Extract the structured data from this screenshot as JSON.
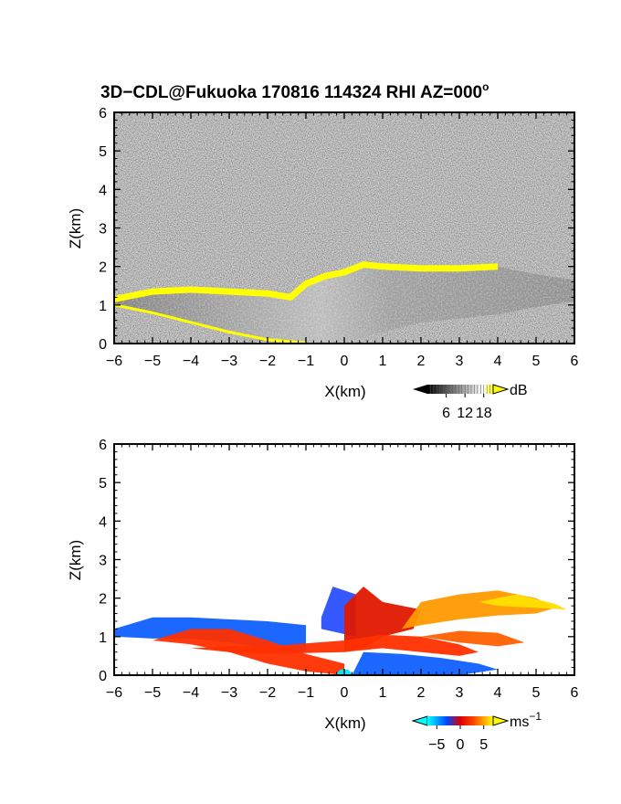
{
  "title": {
    "main": "3D−CDL@Fukuoka 170816 114324 RHI AZ=000",
    "deg": "o"
  },
  "chart_data": [
    {
      "type": "heatmap",
      "panel": "reflectivity",
      "xlabel": "X(km)",
      "ylabel": "Z(km)",
      "xlim": [
        -6,
        6
      ],
      "ylim": [
        0,
        6
      ],
      "xticks": [
        "−6",
        "−5",
        "−4",
        "−3",
        "−2",
        "−1",
        "0",
        "1",
        "2",
        "3",
        "4",
        "5",
        "6"
      ],
      "yticks": [
        "0",
        "1",
        "2",
        "3",
        "4",
        "5",
        "6"
      ],
      "colorbar": {
        "unit": "dB",
        "ticks": [
          "6",
          "12",
          "18"
        ],
        "range": [
          0,
          21
        ],
        "colors": [
          "#000000",
          "#ffffff",
          "#ffff00"
        ]
      },
      "layer": {
        "top": [
          [
            -6,
            1.15
          ],
          [
            -5,
            1.35
          ],
          [
            -4,
            1.4
          ],
          [
            -3,
            1.35
          ],
          [
            -2,
            1.3
          ],
          [
            -1.4,
            1.2
          ],
          [
            -1,
            1.55
          ],
          [
            -0.5,
            1.75
          ],
          [
            0,
            1.85
          ],
          [
            0.5,
            2.05
          ],
          [
            1,
            2.0
          ],
          [
            2,
            1.95
          ],
          [
            3,
            1.95
          ],
          [
            4,
            2.0
          ],
          [
            5,
            1.8
          ],
          [
            6,
            1.65
          ]
        ],
        "bottom": [
          [
            -6,
            1.0
          ],
          [
            -5,
            0.8
          ],
          [
            -4,
            0.55
          ],
          [
            -3,
            0.3
          ],
          [
            -2,
            0.1
          ],
          [
            -1,
            0.02
          ],
          [
            0,
            0.05
          ],
          [
            1,
            0.3
          ],
          [
            2,
            0.55
          ],
          [
            3,
            0.65
          ],
          [
            4,
            0.75
          ],
          [
            5,
            0.95
          ],
          [
            6,
            1.1
          ]
        ],
        "echo_top_dB": 18,
        "echo_top": [
          [
            -6,
            1.15
          ],
          [
            -5,
            1.35
          ],
          [
            -4,
            1.4
          ],
          [
            -3,
            1.35
          ],
          [
            -2,
            1.3
          ],
          [
            -1.4,
            1.2
          ],
          [
            -1,
            1.55
          ],
          [
            -0.5,
            1.75
          ],
          [
            0,
            1.85
          ],
          [
            0.5,
            2.05
          ],
          [
            1,
            2.0
          ],
          [
            2,
            1.95
          ],
          [
            3,
            1.95
          ],
          [
            4,
            2.0
          ]
        ]
      }
    },
    {
      "type": "heatmap",
      "panel": "doppler velocity",
      "xlabel": "X(km)",
      "ylabel": "Z(km)",
      "xlim": [
        -6,
        6
      ],
      "ylim": [
        0,
        6
      ],
      "xticks": [
        "−6",
        "−5",
        "−4",
        "−3",
        "−2",
        "−1",
        "0",
        "1",
        "2",
        "3",
        "4",
        "5",
        "6"
      ],
      "yticks": [
        "0",
        "1",
        "2",
        "3",
        "4",
        "5",
        "6"
      ],
      "colorbar": {
        "unit": "ms",
        "unit_exp": "−1",
        "ticks": [
          "−5",
          "0",
          "5"
        ],
        "range": [
          -7,
          7
        ],
        "colors": [
          "#00ffff",
          "#0044ff",
          "#ff2200",
          "#ffff00"
        ]
      },
      "regions": [
        {
          "v": -4,
          "outline": [
            [
              -6,
              1.0
            ],
            [
              -6,
              1.2
            ],
            [
              -5,
              1.5
            ],
            [
              -4,
              1.5
            ],
            [
              -3,
              1.45
            ],
            [
              -2,
              1.4
            ],
            [
              -1,
              1.3
            ],
            [
              -1,
              0.6
            ],
            [
              -2,
              0.7
            ],
            [
              -3,
              0.85
            ],
            [
              -4,
              0.95
            ],
            [
              -5,
              0.95
            ]
          ]
        },
        {
          "v": -3,
          "outline": [
            [
              -0.6,
              1.5
            ],
            [
              -0.3,
              2.3
            ],
            [
              0.3,
              2.1
            ],
            [
              0.3,
              1.0
            ],
            [
              -0.6,
              1.2
            ]
          ]
        },
        {
          "v": 2,
          "outline": [
            [
              -5,
              0.9
            ],
            [
              -4,
              1.2
            ],
            [
              -3,
              1.2
            ],
            [
              -2,
              0.9
            ],
            [
              -1,
              0.55
            ],
            [
              0,
              0.3
            ],
            [
              0,
              0.0
            ],
            [
              -1,
              0.1
            ],
            [
              -2,
              0.3
            ],
            [
              -3,
              0.6
            ],
            [
              -4,
              0.8
            ]
          ]
        },
        {
          "v": 1,
          "outline": [
            [
              0,
              0.6
            ],
            [
              0,
              1.8
            ],
            [
              0.5,
              2.3
            ],
            [
              1,
              1.9
            ],
            [
              2,
              1.7
            ],
            [
              1.8,
              1.2
            ],
            [
              1,
              1.0
            ],
            [
              0.5,
              0.7
            ]
          ]
        },
        {
          "v": 2,
          "outline": [
            [
              -4,
              0.7
            ],
            [
              -3,
              0.75
            ],
            [
              -2,
              0.75
            ],
            [
              0,
              0.9
            ],
            [
              1,
              1.05
            ],
            [
              2,
              1.0
            ],
            [
              3,
              0.8
            ],
            [
              3.5,
              0.6
            ],
            [
              3,
              0.5
            ],
            [
              2,
              0.6
            ],
            [
              1,
              0.7
            ],
            [
              0,
              0.6
            ],
            [
              -2,
              0.55
            ],
            [
              -3,
              0.6
            ]
          ]
        },
        {
          "v": 4,
          "outline": [
            [
              1.5,
              1.2
            ],
            [
              2,
              1.9
            ],
            [
              3,
              2.1
            ],
            [
              4,
              2.2
            ],
            [
              5,
              2.0
            ],
            [
              5.5,
              1.75
            ],
            [
              5,
              1.6
            ],
            [
              4,
              1.55
            ],
            [
              3,
              1.45
            ],
            [
              2,
              1.3
            ]
          ]
        },
        {
          "v": 6,
          "outline": [
            [
              3.5,
              1.9
            ],
            [
              4.5,
              2.1
            ],
            [
              5.5,
              1.85
            ],
            [
              5.8,
              1.7
            ],
            [
              5,
              1.75
            ],
            [
              4,
              1.8
            ]
          ]
        },
        {
          "v": 3,
          "outline": [
            [
              2,
              1.0
            ],
            [
              3,
              1.15
            ],
            [
              4,
              1.1
            ],
            [
              4.7,
              0.85
            ],
            [
              4,
              0.75
            ],
            [
              3,
              0.85
            ]
          ]
        },
        {
          "v": -4,
          "outline": [
            [
              0.2,
              0.0
            ],
            [
              0.5,
              0.6
            ],
            [
              1.5,
              0.55
            ],
            [
              2.5,
              0.45
            ],
            [
              3.5,
              0.3
            ],
            [
              4,
              0.15
            ],
            [
              3,
              0.0
            ]
          ]
        },
        {
          "v": -6,
          "outline": [
            [
              -0.25,
              0.0
            ],
            [
              -0.1,
              0.15
            ],
            [
              0.1,
              0.15
            ],
            [
              0.25,
              0.0
            ]
          ]
        }
      ]
    }
  ]
}
